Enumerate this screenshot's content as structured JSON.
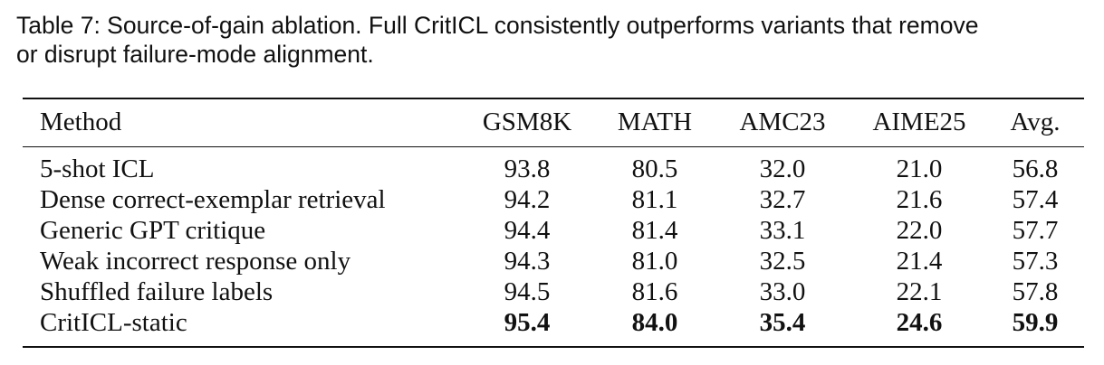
{
  "caption": {
    "line1": "Table 7: Source-of-gain ablation. Full CritICL consistently outperforms variants that remove",
    "line2": "or disrupt failure-mode alignment."
  },
  "table": {
    "header": [
      "Method",
      "GSM8K",
      "MATH",
      "AMC23",
      "AIME25",
      "Avg."
    ],
    "rows": [
      [
        "5-shot ICL",
        "93.8",
        "80.5",
        "32.0",
        "21.0",
        "56.8"
      ],
      [
        "Dense correct-exemplar retrieval",
        "94.2",
        "81.1",
        "32.7",
        "21.6",
        "57.4"
      ],
      [
        "Generic GPT critique",
        "94.4",
        "81.4",
        "33.1",
        "22.0",
        "57.7"
      ],
      [
        "Weak incorrect response only",
        "94.3",
        "81.0",
        "32.5",
        "21.4",
        "57.3"
      ],
      [
        "Shuffled failure labels",
        "94.5",
        "81.6",
        "33.0",
        "22.1",
        "57.8"
      ],
      [
        "CritICL-static",
        "95.4",
        "84.0",
        "35.4",
        "24.6",
        "59.9"
      ]
    ]
  }
}
